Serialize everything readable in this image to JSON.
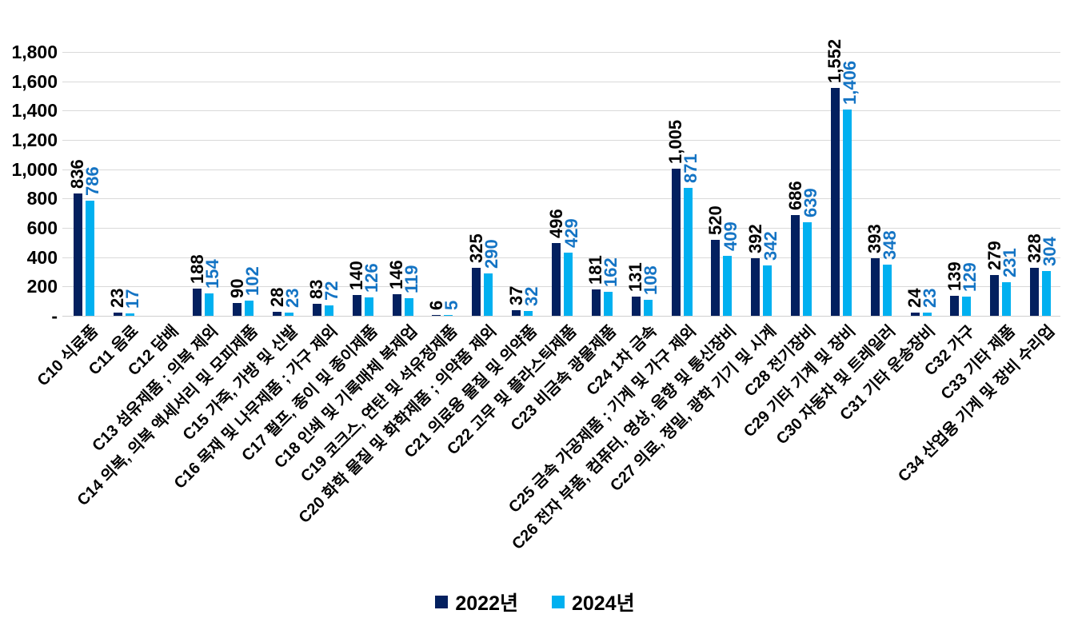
{
  "chart_data": {
    "type": "bar",
    "title": "",
    "xlabel": "",
    "ylabel": "",
    "grid": true,
    "legend_position": "bottom",
    "y_axis": {
      "min": 0,
      "max": 1800,
      "step": 200,
      "tick_labels": [
        "-",
        "200",
        "400",
        "600",
        "800",
        "1,000",
        "1,200",
        "1,400",
        "1,600",
        "1,800"
      ]
    },
    "categories": [
      "C10 식료품",
      "C11 음료",
      "C12 담배",
      "C13 섬유제품 ; 의복 제외",
      "C14 의복, 의복 액세서리 및 모피제품",
      "C15 가죽, 가방 및 신발",
      "C16 목재 및 나무제품 ; 가구 제외",
      "C17 펄프, 종이 및 종이제품",
      "C18 인쇄 및 기록매체 복제업",
      "C19 코크스, 연탄 및 석유정제품",
      "C20 화학 물질 및 화학제품 ; 의약품 제외",
      "C21 의료용 물질 및 의약품",
      "C22 고무 및 플라스틱제품",
      "C23 비금속 광물제품",
      "C24 1차 금속",
      "C25 금속 가공제품 ; 기계 및 가구 제외",
      "C26 전자 부품, 컴퓨터, 영상, 음향 및 통신장비",
      "C27 의료, 정밀, 광학 기기 및 시계",
      "C28 전기장비",
      "C29 기타 기계 및 장비",
      "C30 자동차 및 트레일러",
      "C31 기타 운송장비",
      "C32 가구",
      "C33 기타 제품",
      "C34 산업용 기계 및 장비 수리업"
    ],
    "series": [
      {
        "name": "2022년",
        "color": "#03205f",
        "label_color": "#000000",
        "values": [
          836,
          23,
          null,
          188,
          90,
          28,
          83,
          140,
          146,
          6,
          325,
          37,
          496,
          181,
          131,
          1005,
          520,
          392,
          686,
          1552,
          393,
          24,
          139,
          279,
          328
        ],
        "labels": [
          "836",
          "23",
          "",
          "188",
          "90",
          "28",
          "83",
          "140",
          "146",
          "6",
          "325",
          "37",
          "496",
          "181",
          "131",
          "1,005",
          "520",
          "392",
          "686",
          "1,552",
          "393",
          "24",
          "139",
          "279",
          "328"
        ]
      },
      {
        "name": "2024년",
        "color": "#00b0f0",
        "label_color": "#1474c4",
        "values": [
          786,
          17,
          null,
          154,
          102,
          23,
          72,
          126,
          119,
          5,
          290,
          32,
          429,
          162,
          108,
          871,
          409,
          342,
          639,
          1406,
          348,
          23,
          129,
          231,
          304
        ],
        "labels": [
          "786",
          "17",
          "",
          "154",
          "102",
          "23",
          "72",
          "126",
          "119",
          "5",
          "290",
          "32",
          "429",
          "162",
          "108",
          "871",
          "409",
          "342",
          "639",
          "1,406",
          "348",
          "23",
          "129",
          "231",
          "304"
        ]
      }
    ],
    "colors": {
      "gridline": "#d9d9d9",
      "axis_text": "#000000"
    }
  }
}
